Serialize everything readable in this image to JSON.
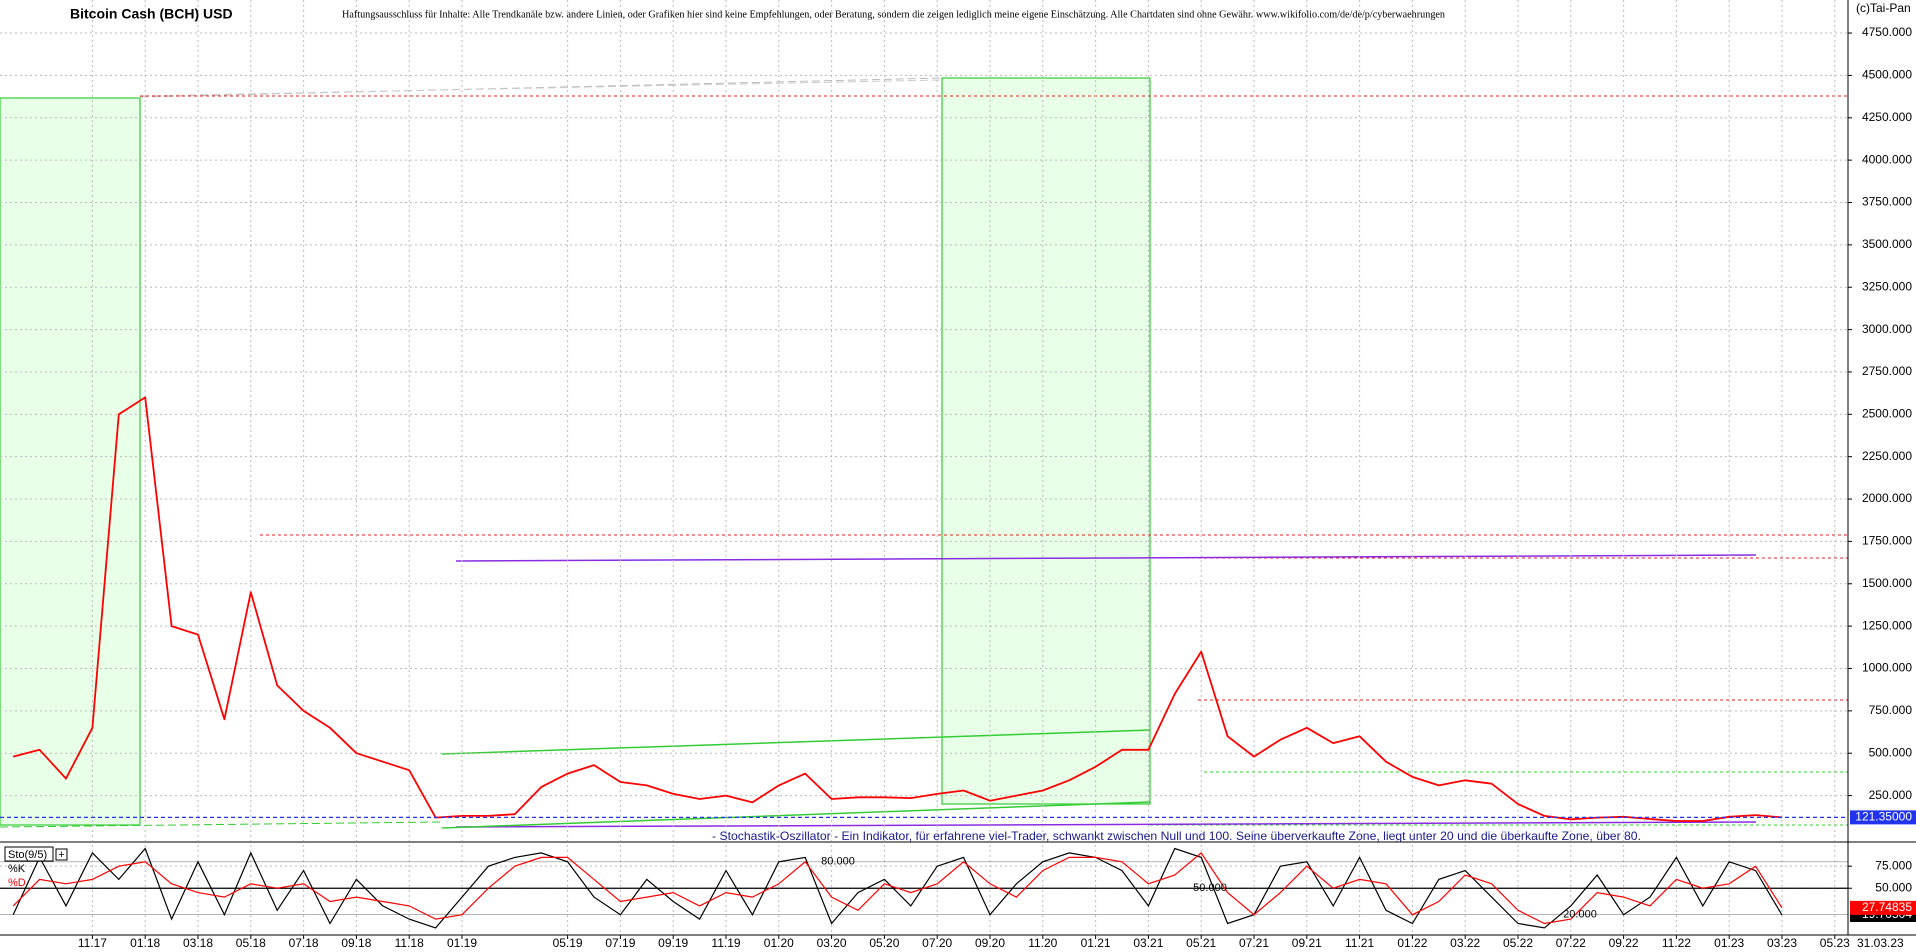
{
  "chart_data": [
    {
      "type": "line",
      "title": "Bitcoin Cash (BCH) USD",
      "subtitle": "Haftungsausschluss für Inhalte: Alle Trendkanäle bzw. andere Linien, oder Grafiken hier sind keine Empfehlungen, oder Beratung, sondern die zeigen lediglich meine eigene Einschätzung. Alle Chartdaten sind ohne Gewähr. www.wikifolio.com/de/de/p/cyberwaehrungen",
      "source": "(c)Tai-Pan",
      "date_label": "31.03.23",
      "annotation": "- Stochastik-Oszillator - Ein Indikator, für erfahrene viel-Trader, schwankt zwischen Null und 100. Seine überverkaufte Zone, liegt unter 20 und die überkaufte Zone, über 80.",
      "categories": [
        null,
        null,
        null,
        "11.17",
        null,
        "01.18",
        null,
        "03.18",
        null,
        "05.18",
        null,
        "07.18",
        null,
        "09.18",
        null,
        "11.18",
        null,
        "01.19",
        null,
        null,
        null,
        "05.19",
        null,
        "07.19",
        null,
        "09.19",
        null,
        "11.19",
        null,
        "01.20",
        null,
        "03.20",
        null,
        "05.20",
        null,
        "07.20",
        null,
        "09.20",
        null,
        "11.20",
        null,
        "01.21",
        null,
        "03.21",
        null,
        "05.21",
        null,
        "07.21",
        null,
        "09.21",
        null,
        "11.21",
        null,
        "01.22",
        null,
        "03.22",
        null,
        "05.22",
        null,
        "07.22",
        null,
        "09.22",
        null,
        "11.22",
        null,
        "01.23",
        null,
        "03.23",
        null,
        "05.23"
      ],
      "values": [
        480,
        520,
        350,
        650,
        2500,
        2600,
        1250,
        1200,
        700,
        1450,
        900,
        750,
        650,
        500,
        450,
        400,
        120,
        130,
        130,
        140,
        300,
        380,
        430,
        330,
        310,
        260,
        230,
        250,
        210,
        310,
        380,
        230,
        240,
        240,
        235,
        260,
        280,
        220,
        250,
        280,
        340,
        420,
        520,
        520,
        850,
        1100,
        600,
        480,
        580,
        650,
        560,
        600,
        450,
        360,
        310,
        340,
        320,
        200,
        130,
        110,
        120,
        125,
        112,
        100,
        100,
        125,
        135,
        121.35,
        null,
        null
      ],
      "last_value_label": "121.35000",
      "color": "#ff0000",
      "ylim": [
        -18,
        4945
      ],
      "yticks": [
        {
          "value": 250,
          "label": "250.000"
        },
        {
          "value": 500,
          "label": "500.000"
        },
        {
          "value": 750,
          "label": "750.000"
        },
        {
          "value": 1000,
          "label": "1000.000"
        },
        {
          "value": 1250,
          "label": "1250.000"
        },
        {
          "value": 1500,
          "label": "1500.000"
        },
        {
          "value": 1750,
          "label": "1750.000"
        },
        {
          "value": 2000,
          "label": "2000.000"
        },
        {
          "value": 2250,
          "label": "2250.000"
        },
        {
          "value": 2500,
          "label": "2500.000"
        },
        {
          "value": 2750,
          "label": "2750.000"
        },
        {
          "value": 3000,
          "label": "3000.000"
        },
        {
          "value": 3250,
          "label": "3250.000"
        },
        {
          "value": 3500,
          "label": "3500.000"
        },
        {
          "value": 3750,
          "label": "3750.000"
        },
        {
          "value": 4000,
          "label": "4000.000"
        },
        {
          "value": 4250,
          "label": "4250.000"
        },
        {
          "value": 4500,
          "label": "4500.000"
        },
        {
          "value": 4750,
          "label": "4750.000"
        }
      ],
      "grid": true
    },
    {
      "type": "line",
      "title": "Sto(9/5)",
      "series": [
        {
          "name": "%K",
          "color": "#000000",
          "values": [
            20,
            85,
            30,
            90,
            60,
            95,
            15,
            80,
            20,
            90,
            25,
            70,
            10,
            60,
            30,
            15,
            5,
            40,
            75,
            85,
            90,
            80,
            40,
            20,
            60,
            35,
            15,
            70,
            20,
            80,
            85,
            10,
            45,
            60,
            30,
            75,
            85,
            20,
            55,
            80,
            90,
            85,
            70,
            30,
            95,
            85,
            10,
            20,
            75,
            80,
            30,
            85,
            25,
            10,
            60,
            70,
            40,
            10,
            5,
            30,
            65,
            20,
            40,
            85,
            30,
            80,
            70,
            19.70504,
            null,
            null
          ]
        },
        {
          "name": "%D",
          "color": "#ff0000",
          "values": [
            30,
            60,
            55,
            60,
            75,
            80,
            55,
            45,
            40,
            55,
            50,
            55,
            35,
            40,
            35,
            30,
            15,
            20,
            50,
            75,
            85,
            85,
            60,
            35,
            40,
            45,
            30,
            45,
            40,
            55,
            80,
            40,
            25,
            55,
            45,
            55,
            80,
            55,
            40,
            70,
            85,
            85,
            80,
            55,
            65,
            90,
            45,
            20,
            45,
            75,
            50,
            60,
            55,
            20,
            35,
            65,
            55,
            25,
            10,
            15,
            45,
            40,
            30,
            60,
            50,
            55,
            75,
            27.74835,
            null,
            null
          ]
        }
      ],
      "ylim": [
        -3,
        99
      ],
      "yticks": [
        {
          "value": 50,
          "label": "50.000"
        },
        {
          "value": 75,
          "label": "75.000"
        }
      ],
      "levels": [
        {
          "value": 80,
          "label": "80.000"
        },
        {
          "value": 50,
          "label": "50.000"
        },
        {
          "value": 20,
          "label": "20.000"
        }
      ],
      "grid": true
    }
  ]
}
